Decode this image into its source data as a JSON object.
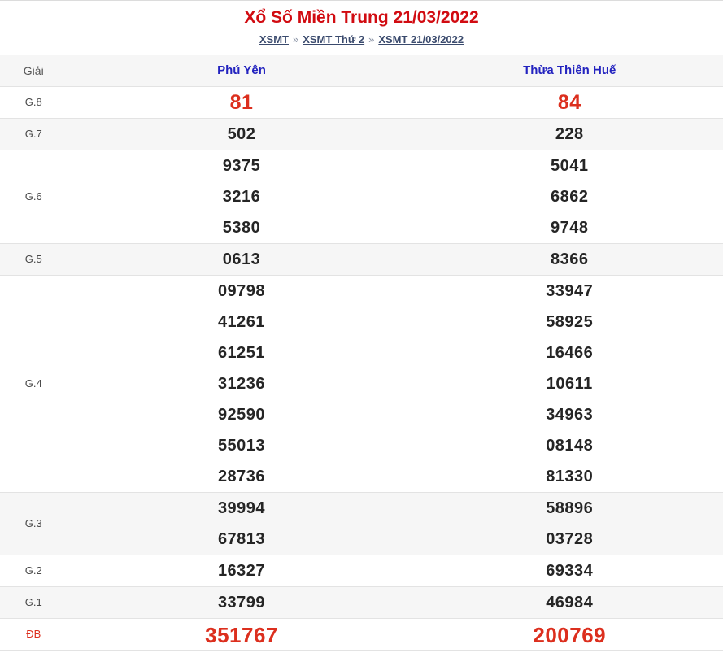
{
  "header": {
    "title": "Xổ Số Miền Trung 21/03/2022",
    "separator": "»",
    "breadcrumb": [
      {
        "label": "XSMT"
      },
      {
        "label": "XSMT Thứ 2"
      },
      {
        "label": "XSMT 21/03/2022"
      }
    ]
  },
  "colors": {
    "title_red": "#d10b11",
    "value_red": "#dc2f1e",
    "province_header_blue": "#2323bf",
    "breadcrumb_link_navy": "#3a4a6d",
    "stripe_gray": "#f6f6f6",
    "border_gray": "#e3e3e3"
  },
  "table": {
    "headers": [
      "Giải",
      "Phú Yên",
      "Thừa Thiên Huế"
    ],
    "rows": [
      {
        "label": "G.8",
        "py": [
          "81"
        ],
        "hue": [
          "84"
        ]
      },
      {
        "label": "G.7",
        "py": [
          "502"
        ],
        "hue": [
          "228"
        ]
      },
      {
        "label": "G.6",
        "py": [
          "9375",
          "3216",
          "5380"
        ],
        "hue": [
          "5041",
          "6862",
          "9748"
        ]
      },
      {
        "label": "G.5",
        "py": [
          "0613"
        ],
        "hue": [
          "8366"
        ]
      },
      {
        "label": "G.4",
        "py": [
          "09798",
          "41261",
          "61251",
          "31236",
          "92590",
          "55013",
          "28736"
        ],
        "hue": [
          "33947",
          "58925",
          "16466",
          "10611",
          "34963",
          "08148",
          "81330"
        ]
      },
      {
        "label": "G.3",
        "py": [
          "39994",
          "67813"
        ],
        "hue": [
          "58896",
          "03728"
        ]
      },
      {
        "label": "G.2",
        "py": [
          "16327"
        ],
        "hue": [
          "69334"
        ]
      },
      {
        "label": "G.1",
        "py": [
          "33799"
        ],
        "hue": [
          "46984"
        ]
      },
      {
        "label": "ĐB",
        "py": [
          "351767"
        ],
        "hue": [
          "200769"
        ]
      }
    ]
  }
}
